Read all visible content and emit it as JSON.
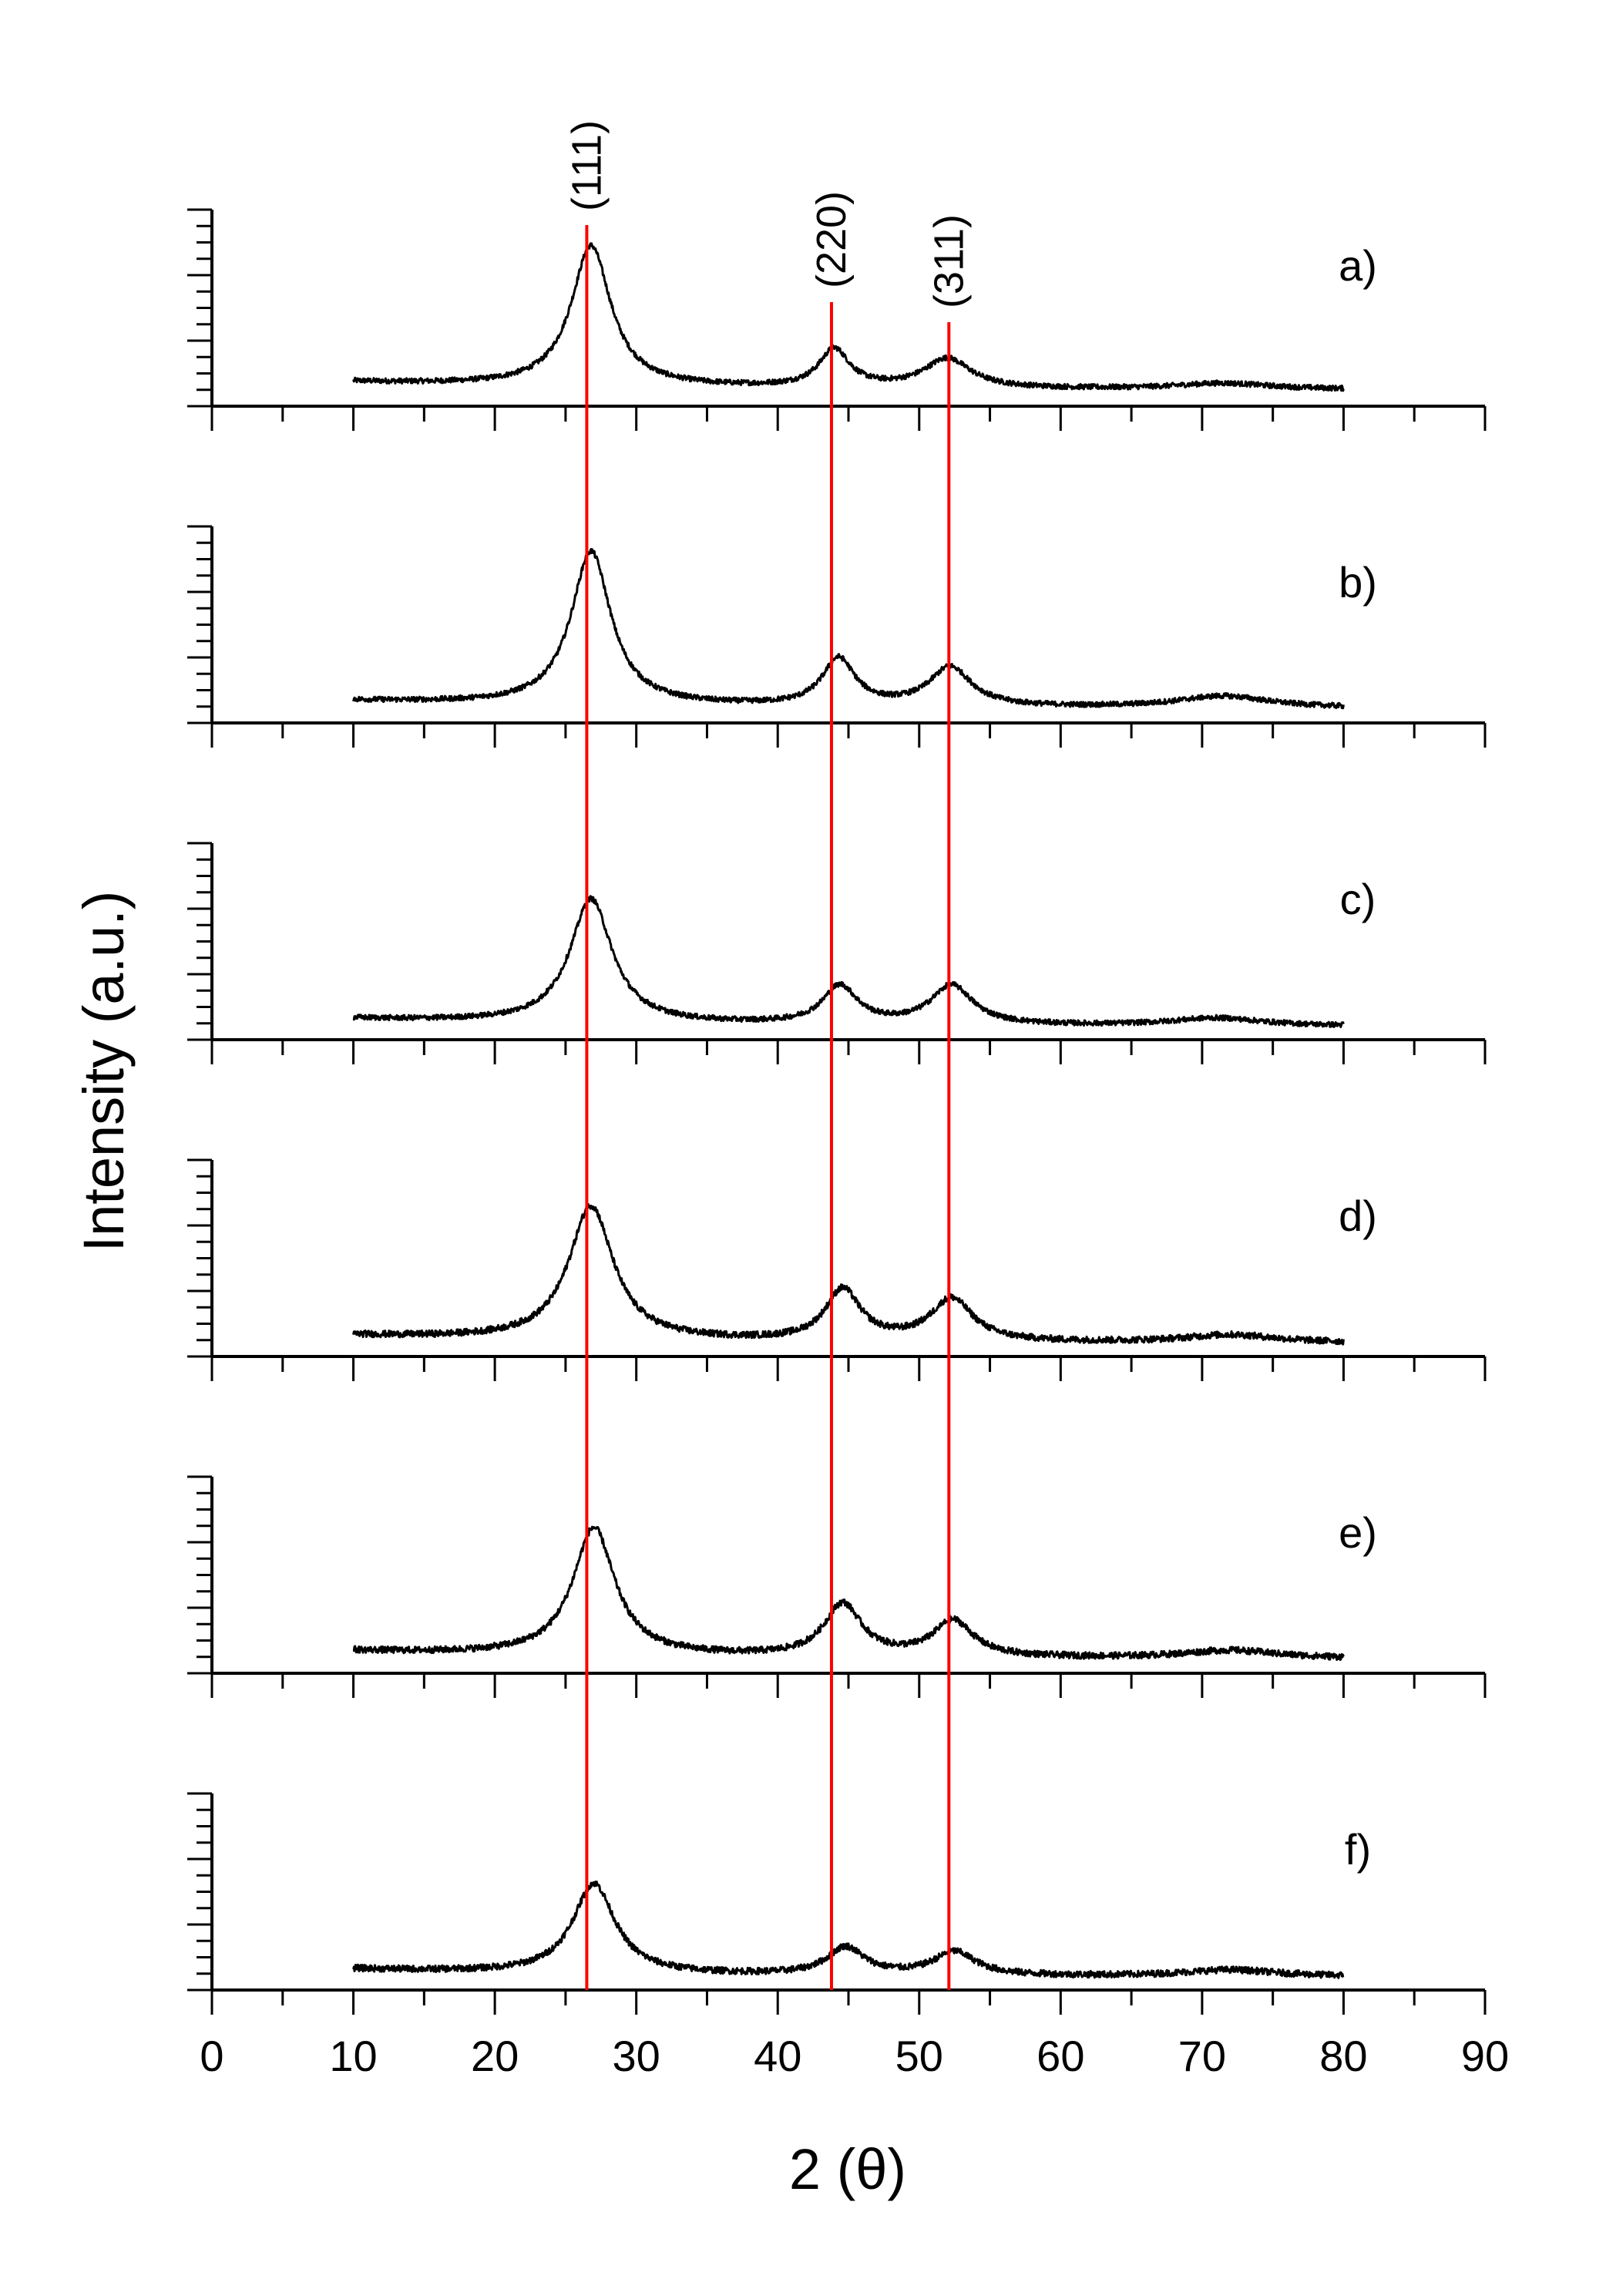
{
  "chart_data": {
    "type": "line",
    "title": "",
    "xlabel": "2 (θ)",
    "ylabel": "Intensity (a.u.)",
    "xlim": [
      0,
      90
    ],
    "x_ticks": [
      "0",
      "10",
      "20",
      "30",
      "40",
      "50",
      "60",
      "70",
      "80",
      "90"
    ],
    "x_range_data": [
      10,
      80
    ],
    "grid": false,
    "reference_lines": [
      {
        "label": "(111)",
        "x": 26.5
      },
      {
        "label": "(220)",
        "x": 43.8
      },
      {
        "label": "(311)",
        "x": 52.1
      }
    ],
    "series": [
      {
        "name": "a)",
        "baseline": 0.25,
        "peaks": [
          [
            26.8,
            2.15,
            1.7
          ],
          [
            44.0,
            0.58,
            1.3
          ],
          [
            52.0,
            0.45,
            2.0
          ],
          [
            71.5,
            0.09,
            4.0
          ]
        ],
        "noise": 0.04
      },
      {
        "name": "b)",
        "baseline": 0.22,
        "peaks": [
          [
            26.8,
            2.35,
            1.7
          ],
          [
            44.3,
            0.72,
            1.4
          ],
          [
            52.2,
            0.6,
            1.8
          ],
          [
            71.5,
            0.18,
            4.0
          ]
        ],
        "noise": 0.04
      },
      {
        "name": "c)",
        "baseline": 0.2,
        "peaks": [
          [
            26.8,
            1.9,
            1.8
          ],
          [
            44.4,
            0.58,
            1.5
          ],
          [
            52.3,
            0.6,
            1.8
          ],
          [
            71.0,
            0.12,
            4.0
          ]
        ],
        "noise": 0.04
      },
      {
        "name": "d)",
        "baseline": 0.2,
        "peaks": [
          [
            26.8,
            2.05,
            1.9
          ],
          [
            44.6,
            0.78,
            1.5
          ],
          [
            52.3,
            0.65,
            1.8
          ],
          [
            72.0,
            0.12,
            4.0
          ]
        ],
        "noise": 0.05
      },
      {
        "name": "e)",
        "baseline": 0.22,
        "peaks": [
          [
            27.0,
            1.95,
            1.8
          ],
          [
            44.6,
            0.8,
            1.6
          ],
          [
            52.4,
            0.55,
            1.7
          ],
          [
            72.0,
            0.12,
            4.0
          ]
        ],
        "noise": 0.05
      },
      {
        "name": "f)",
        "baseline": 0.2,
        "peaks": [
          [
            27.0,
            1.38,
            1.8
          ],
          [
            44.8,
            0.42,
            1.6
          ],
          [
            52.5,
            0.36,
            1.8
          ],
          [
            72.0,
            0.1,
            4.0
          ]
        ],
        "noise": 0.05
      }
    ],
    "ylim_panel": [
      0,
      3
    ],
    "colors": {
      "series": "#000000",
      "reference": "#ff0000",
      "axes": "#000000"
    }
  }
}
